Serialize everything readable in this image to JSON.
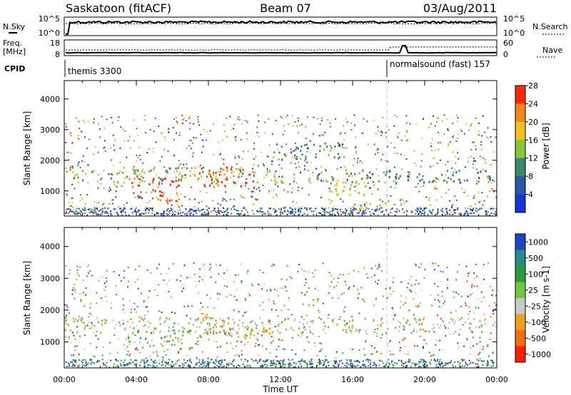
{
  "header": {
    "station": "Saskatoon (fitACF)",
    "beam": "Beam 07",
    "date": "03/Aug/2011"
  },
  "top_panels": {
    "nsky_label": "N.Sky",
    "nsearch_label": "N.Search",
    "nsky_ticks": [
      "10^5",
      "10^0"
    ],
    "freq_label_1": "Freq.",
    "freq_label_2": "[MHz]",
    "freq_ticks": [
      "18",
      "8"
    ],
    "nave_label": "Nave",
    "nave_ticks": [
      "60",
      "0"
    ],
    "cpid_label": "CPID",
    "cpid_modes": [
      {
        "name": "themis 3300",
        "start_hour": 0
      },
      {
        "name": "normalsound (fast) 157",
        "start_hour": 18
      }
    ]
  },
  "chart_data": [
    {
      "type": "heatmap",
      "title": "",
      "xlabel": "",
      "ylabel": "Slant Range [km]",
      "xlim_hours": [
        0,
        24
      ],
      "ylim": [
        180,
        4600
      ],
      "y_ticks": [
        1000,
        2000,
        3000,
        4000
      ],
      "colorbar": {
        "label": "Power [dB]",
        "ticks": [
          "4",
          "8",
          "12",
          "16",
          "20",
          "24",
          "28"
        ],
        "colors": [
          "#1836d8",
          "#2a58a8",
          "#3c8a6c",
          "#8cc43a",
          "#f0c020",
          "#f08818",
          "#ff2a00"
        ]
      },
      "echo_regions": [
        {
          "t0": 0.0,
          "t1": 12.5,
          "r0": 1300,
          "r1": 1800,
          "level": 3
        },
        {
          "t0": 3.5,
          "t1": 6.5,
          "r0": 700,
          "r1": 1500,
          "level": 6
        },
        {
          "t0": 7.2,
          "t1": 10.5,
          "r0": 1100,
          "r1": 1800,
          "level": 6
        },
        {
          "t0": 13.0,
          "t1": 24.0,
          "r0": 1300,
          "r1": 1700,
          "level": 2
        },
        {
          "t0": 14.5,
          "t1": 17.5,
          "r0": 900,
          "r1": 1400,
          "level": 4
        },
        {
          "t0": 11.0,
          "t1": 15.5,
          "r0": 2000,
          "r1": 2600,
          "level": 2
        },
        {
          "t0": 16.0,
          "t1": 18.0,
          "r0": 400,
          "r1": 700,
          "level": 4
        }
      ]
    },
    {
      "type": "heatmap",
      "title": "",
      "xlabel": "Time UT",
      "ylabel": "Slant Range [km]",
      "xlim_hours": [
        0,
        24
      ],
      "ylim": [
        180,
        4600
      ],
      "x_ticks": [
        "00:00",
        "04:00",
        "08:00",
        "12:00",
        "16:00",
        "20:00",
        "00:00"
      ],
      "y_ticks": [
        1000,
        2000,
        3000,
        4000
      ],
      "colorbar": {
        "label": "Velocity [m s-1]",
        "ticks": [
          "1000",
          "500",
          "100",
          "25",
          "-25",
          "-100",
          "-500",
          "-1000"
        ],
        "colors": [
          "#2040c8",
          "#2a8a8a",
          "#2e9a3c",
          "#70c83c",
          "#c8c8c8",
          "#f0a020",
          "#f07010",
          "#ff2000"
        ]
      },
      "echo_regions": [
        {
          "t0": 0.0,
          "t1": 24.0,
          "r0": 1300,
          "r1": 1800,
          "level": 4
        },
        {
          "t0": 3.5,
          "t1": 7.0,
          "r0": 800,
          "r1": 1500,
          "level": 3
        },
        {
          "t0": 7.2,
          "t1": 10.5,
          "r0": 1100,
          "r1": 1800,
          "level": 5
        },
        {
          "t0": 10.5,
          "t1": 12.0,
          "r0": 1050,
          "r1": 1400,
          "level": 5
        }
      ]
    }
  ]
}
